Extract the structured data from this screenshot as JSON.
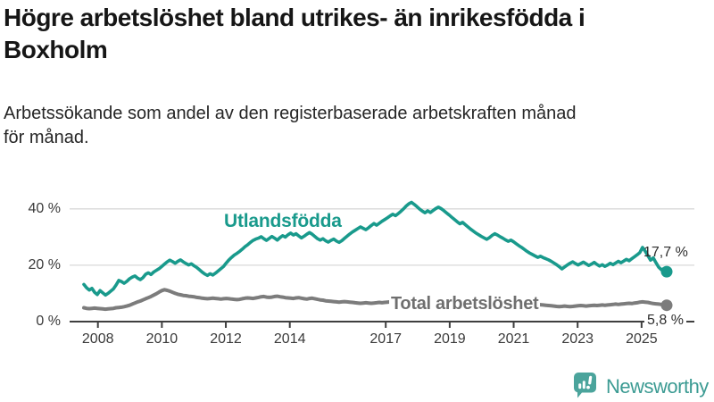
{
  "header": {
    "title_line1": "Högre arbetslöshet bland utrikes- än inrikesfödda i",
    "title_line2": "Boxholm",
    "subtitle_line1": "Arbetssökande som andel av den registerbaserade arbetskraften månad",
    "subtitle_line2": "för månad."
  },
  "chart_data": {
    "type": "line",
    "unit": "%",
    "frequency": "monthly",
    "x_start": "2007-08",
    "x_end": "2025-09",
    "y_axis": {
      "range": [
        0,
        45
      ],
      "gridlines": true,
      "ticks": [
        {
          "value": 40,
          "label": "40 %"
        },
        {
          "value": 20,
          "label": "20 %"
        },
        {
          "value": 0,
          "label": "0 %"
        }
      ]
    },
    "x_axis": {
      "ticks": [
        {
          "year": 2008,
          "label": "2008"
        },
        {
          "year": 2010,
          "label": "2010"
        },
        {
          "year": 2012,
          "label": "2012"
        },
        {
          "year": 2014,
          "label": "2014"
        },
        {
          "year": 2017,
          "label": "2017"
        },
        {
          "year": 2019,
          "label": "2019"
        },
        {
          "year": 2021,
          "label": "2021"
        },
        {
          "year": 2023,
          "label": "2023"
        },
        {
          "year": 2025,
          "label": "2025"
        }
      ]
    },
    "style": {
      "grid_color": "#d9d9d9",
      "axis_color": "#3f3f3f"
    },
    "series": [
      {
        "name": "Utlandsfödda",
        "color": "#199a8c",
        "end_label": "17,7 %",
        "end_value": 17.7,
        "values": [
          13.2,
          12.0,
          11.2,
          11.8,
          10.4,
          9.6,
          11.0,
          10.2,
          9.4,
          10.0,
          10.8,
          11.6,
          13.0,
          14.6,
          14.2,
          13.6,
          14.3,
          15.2,
          15.8,
          16.2,
          15.4,
          14.9,
          15.6,
          16.8,
          17.3,
          16.7,
          17.6,
          18.2,
          18.8,
          19.6,
          20.4,
          21.2,
          21.8,
          21.3,
          20.7,
          21.4,
          21.9,
          21.2,
          20.6,
          20.1,
          20.5,
          19.8,
          19.2,
          18.4,
          17.6,
          16.9,
          16.4,
          17.0,
          16.5,
          17.2,
          18.0,
          18.8,
          19.6,
          20.8,
          21.9,
          22.8,
          23.6,
          24.2,
          24.9,
          25.7,
          26.6,
          27.3,
          28.1,
          28.8,
          29.3,
          29.6,
          30.1,
          29.4,
          28.8,
          29.5,
          30.2,
          29.6,
          28.9,
          29.8,
          30.5,
          30.0,
          30.8,
          31.4,
          30.7,
          31.2,
          30.4,
          29.7,
          30.3,
          31.0,
          31.6,
          31.0,
          30.2,
          29.4,
          28.9,
          29.4,
          28.7,
          28.2,
          28.8,
          29.3,
          28.6,
          28.1,
          28.7,
          29.5,
          30.3,
          31.1,
          31.8,
          32.4,
          33.0,
          33.6,
          33.1,
          32.6,
          33.3,
          34.1,
          34.8,
          34.2,
          34.9,
          35.6,
          36.2,
          36.8,
          37.5,
          38.1,
          37.6,
          38.3,
          39.1,
          40.0,
          41.0,
          41.8,
          42.3,
          41.6,
          40.8,
          39.9,
          39.2,
          38.6,
          39.3,
          38.7,
          39.4,
          40.1,
          40.6,
          40.1,
          39.4,
          38.6,
          37.8,
          37.0,
          36.2,
          35.4,
          34.7,
          35.2,
          34.4,
          33.6,
          32.8,
          32.1,
          31.4,
          30.8,
          30.2,
          29.7,
          29.2,
          29.8,
          30.6,
          31.2,
          30.7,
          30.1,
          29.6,
          29.0,
          28.5,
          28.9,
          28.3,
          27.6,
          26.9,
          26.3,
          25.6,
          24.9,
          24.3,
          23.8,
          23.3,
          22.8,
          23.2,
          22.7,
          22.3,
          21.9,
          21.4,
          20.8,
          20.2,
          19.5,
          18.7,
          19.4,
          20.1,
          20.7,
          21.2,
          20.6,
          20.1,
          20.6,
          21.1,
          20.5,
          19.9,
          20.4,
          21.0,
          20.3,
          19.7,
          20.2,
          19.6,
          20.1,
          20.7,
          20.2,
          20.8,
          21.4,
          20.9,
          21.5,
          22.1,
          21.6,
          22.3,
          23.0,
          23.7,
          24.5,
          26.3,
          25.0,
          23.4,
          21.8,
          22.6,
          20.9,
          19.3,
          18.4,
          18.8,
          17.7
        ]
      },
      {
        "name": "Total arbetslöshet",
        "color": "#7c7c7c",
        "end_label": "5,8 %",
        "end_value": 5.8,
        "values": [
          4.9,
          4.7,
          4.6,
          4.7,
          4.8,
          4.7,
          4.6,
          4.5,
          4.4,
          4.5,
          4.6,
          4.7,
          4.9,
          5.0,
          5.1,
          5.3,
          5.5,
          5.8,
          6.2,
          6.6,
          7.0,
          7.3,
          7.7,
          8.1,
          8.5,
          8.9,
          9.4,
          9.9,
          10.5,
          11.0,
          11.3,
          11.1,
          10.8,
          10.4,
          10.0,
          9.7,
          9.5,
          9.3,
          9.2,
          9.0,
          8.9,
          8.8,
          8.6,
          8.5,
          8.3,
          8.2,
          8.1,
          8.2,
          8.3,
          8.2,
          8.1,
          8.0,
          8.1,
          8.2,
          8.1,
          8.0,
          7.9,
          7.8,
          7.9,
          8.1,
          8.3,
          8.4,
          8.3,
          8.2,
          8.4,
          8.6,
          8.8,
          8.9,
          8.7,
          8.6,
          8.7,
          8.9,
          9.0,
          8.8,
          8.7,
          8.5,
          8.4,
          8.3,
          8.2,
          8.4,
          8.5,
          8.3,
          8.1,
          8.0,
          8.2,
          8.3,
          8.1,
          7.9,
          7.7,
          7.6,
          7.4,
          7.3,
          7.2,
          7.1,
          7.0,
          6.9,
          7.0,
          7.1,
          7.0,
          6.9,
          6.8,
          6.7,
          6.6,
          6.5,
          6.6,
          6.7,
          6.6,
          6.5,
          6.6,
          6.7,
          6.8,
          6.7,
          6.8,
          6.9,
          7.0,
          7.1,
          7.0,
          6.9,
          6.8,
          6.9,
          7.0,
          6.9,
          6.8,
          6.7,
          6.6,
          6.5,
          6.4,
          6.3,
          6.4,
          6.3,
          6.2,
          6.3,
          6.4,
          6.3,
          6.2,
          6.3,
          6.4,
          6.5,
          6.4,
          6.3,
          6.4,
          6.5,
          6.4,
          6.5,
          6.6,
          6.5,
          6.6,
          6.7,
          6.8,
          6.9,
          7.0,
          7.3,
          7.7,
          7.9,
          8.0,
          7.9,
          7.8,
          7.7,
          7.6,
          7.5,
          7.4,
          7.3,
          7.2,
          7.1,
          7.0,
          6.9,
          6.7,
          6.5,
          6.3,
          6.1,
          6.0,
          5.9,
          5.8,
          5.7,
          5.6,
          5.5,
          5.4,
          5.3,
          5.4,
          5.5,
          5.4,
          5.3,
          5.4,
          5.5,
          5.6,
          5.7,
          5.6,
          5.5,
          5.6,
          5.7,
          5.8,
          5.7,
          5.8,
          5.9,
          5.8,
          5.9,
          6.0,
          6.1,
          6.2,
          6.1,
          6.2,
          6.3,
          6.4,
          6.5,
          6.4,
          6.6,
          6.7,
          6.9,
          7.0,
          6.9,
          6.8,
          6.6,
          6.4,
          6.3,
          6.2,
          6.1,
          5.9,
          5.8
        ]
      }
    ]
  },
  "branding": {
    "name": "Newsworthy",
    "color": "#3c9b93",
    "icon": "newsworthy-chart-bubble-icon",
    "icon_color": "#4ba49c"
  }
}
